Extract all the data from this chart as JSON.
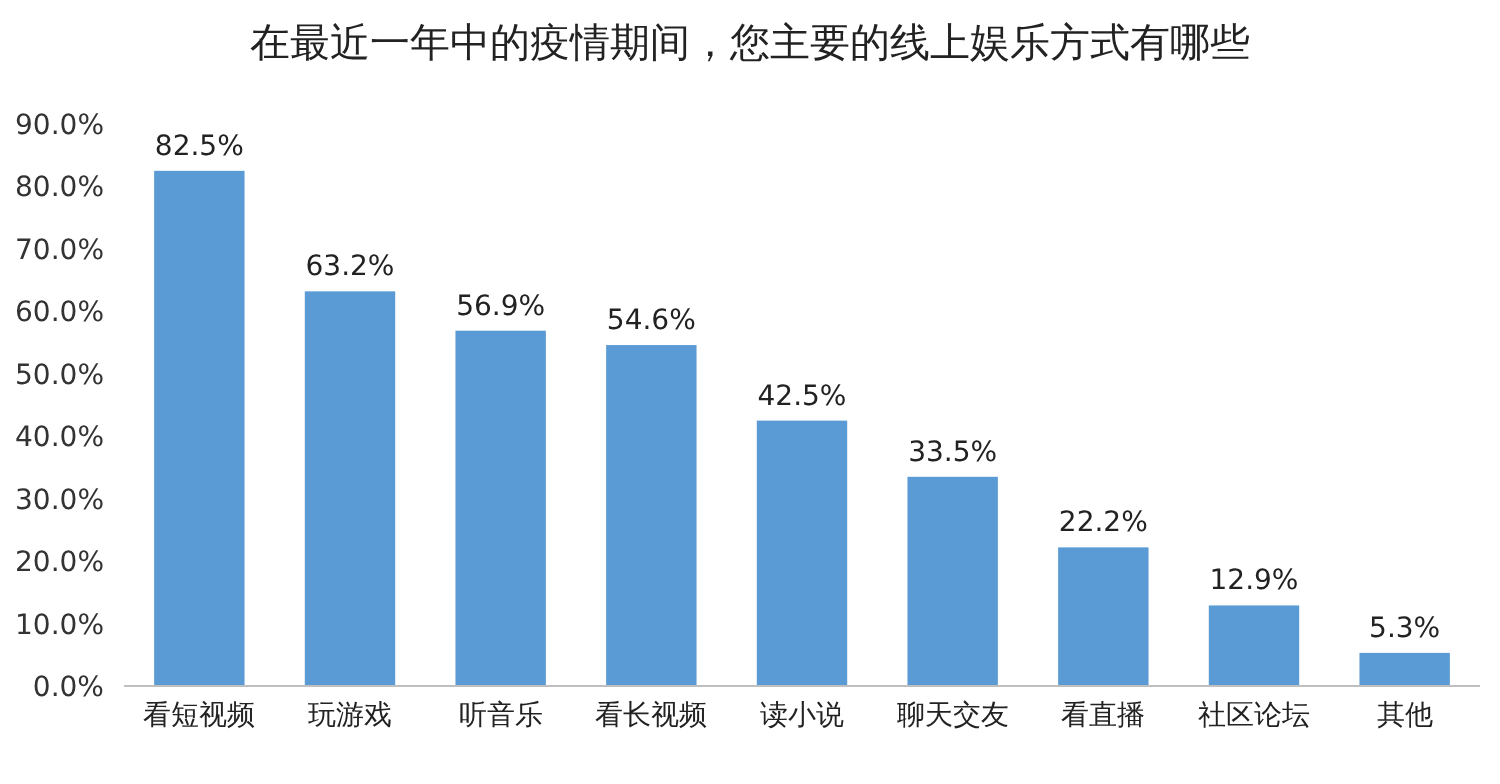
{
  "chart_data": {
    "type": "bar",
    "title": "在最近一年中的疫情期间，您主要的线上娱乐方式有哪些",
    "categories": [
      "看短视频",
      "玩游戏",
      "听音乐",
      "看长视频",
      "读小说",
      "聊天交友",
      "看直播",
      "社区论坛",
      "其他"
    ],
    "values": [
      82.5,
      63.2,
      56.9,
      54.6,
      42.5,
      33.5,
      22.2,
      12.9,
      5.3
    ],
    "value_labels": [
      "82.5%",
      "63.2%",
      "56.9%",
      "54.6%",
      "42.5%",
      "33.5%",
      "22.2%",
      "12.9%",
      "5.3%"
    ],
    "color": "#5b9bd5",
    "ylim": [
      0,
      90
    ],
    "yticks": [
      {
        "value": 0,
        "label": "0.0%"
      },
      {
        "value": 10,
        "label": "10.0%"
      },
      {
        "value": 20,
        "label": "20.0%"
      },
      {
        "value": 30,
        "label": "30.0%"
      },
      {
        "value": 40,
        "label": "40.0%"
      },
      {
        "value": 50,
        "label": "50.0%"
      },
      {
        "value": 60,
        "label": "60.0%"
      },
      {
        "value": 70,
        "label": "70.0%"
      },
      {
        "value": 80,
        "label": "80.0%"
      },
      {
        "value": 90,
        "label": "90.0%"
      }
    ]
  }
}
